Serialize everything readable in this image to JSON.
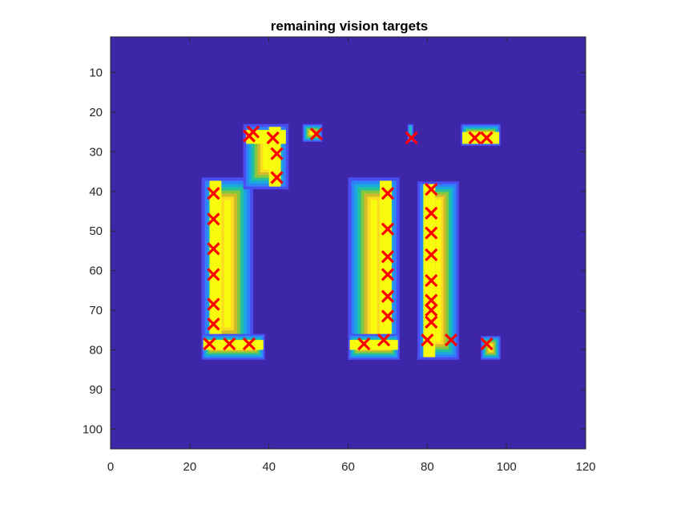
{
  "chart_data": {
    "type": "heatmap",
    "title": "remaining vision targets",
    "xlabel": "",
    "ylabel": "",
    "xlim": [
      0,
      120
    ],
    "ylim": [
      105,
      1
    ],
    "x_ticks": [
      0,
      20,
      40,
      60,
      80,
      100,
      120
    ],
    "y_ticks": [
      10,
      20,
      30,
      40,
      50,
      60,
      70,
      80,
      90,
      100
    ],
    "y_reversed": true,
    "grid": false,
    "background_value_color": "#3e26a8",
    "colormap": "parula",
    "colormap_colors": [
      "#3e26a8",
      "#4a4ef0",
      "#2f82f8",
      "#1aa9dd",
      "#26c19c",
      "#7fc941",
      "#d1bb2b",
      "#fadc21",
      "#f9fb0e"
    ],
    "regions": [
      {
        "name": "left-vertical-bar",
        "x": [
          23,
          36
        ],
        "y": [
          36.5,
          80
        ],
        "core_x": [
          25,
          28
        ]
      },
      {
        "name": "left-bottom-arm",
        "x": [
          23,
          39
        ],
        "y": [
          76,
          82.5
        ],
        "core_y": [
          77.5,
          80
        ]
      },
      {
        "name": "top-left-block",
        "x": [
          33.5,
          45
        ],
        "y": [
          23,
          39.5
        ],
        "core_x": [
          40,
          43
        ],
        "core_y": [
          24.5,
          28
        ]
      },
      {
        "name": "small-square",
        "x": [
          48.5,
          53.5
        ],
        "y": [
          23,
          27.5
        ]
      },
      {
        "name": "middle-vertical-bar",
        "x": [
          60,
          73
        ],
        "y": [
          36.5,
          82.5
        ],
        "core_x": [
          68,
          71
        ]
      },
      {
        "name": "middle-bottom-arm",
        "x": [
          60,
          73
        ],
        "y": [
          76,
          82.5
        ],
        "core_y": [
          77.5,
          80
        ]
      },
      {
        "name": "right-vertical-bar",
        "x": [
          77.5,
          88
        ],
        "y": [
          37.5,
          82.5
        ],
        "core_x": [
          79,
          82
        ]
      },
      {
        "name": "tiny-strip",
        "x": [
          75,
          76.5
        ],
        "y": [
          23,
          27.5
        ]
      },
      {
        "name": "top-right-block",
        "x": [
          88.5,
          98.5
        ],
        "y": [
          23,
          28.5
        ],
        "core_y": [
          25,
          28
        ]
      },
      {
        "name": "bottom-right-block",
        "x": [
          93.5,
          98.5
        ],
        "y": [
          76.5,
          82.5
        ]
      }
    ],
    "markers": {
      "name": "targets",
      "symbol": "x",
      "color": "#ff0000",
      "points": [
        [
          35,
          26
        ],
        [
          36,
          25
        ],
        [
          41,
          26.5
        ],
        [
          42,
          30.5
        ],
        [
          42,
          36.5
        ],
        [
          52,
          25.5
        ],
        [
          76,
          26.5
        ],
        [
          92,
          26.5
        ],
        [
          95,
          26.5
        ],
        [
          26,
          40.5
        ],
        [
          26,
          47
        ],
        [
          26,
          54.5
        ],
        [
          26,
          61
        ],
        [
          26,
          68.5
        ],
        [
          26,
          73.5
        ],
        [
          25,
          78.5
        ],
        [
          30,
          78.5
        ],
        [
          35,
          78.5
        ],
        [
          70,
          40.5
        ],
        [
          70,
          49.5
        ],
        [
          70,
          56.5
        ],
        [
          70,
          61
        ],
        [
          70,
          66.5
        ],
        [
          70,
          71.5
        ],
        [
          64,
          78.5
        ],
        [
          69,
          77.5
        ],
        [
          81,
          39.5
        ],
        [
          81,
          45.5
        ],
        [
          81,
          50.5
        ],
        [
          81,
          56
        ],
        [
          81,
          62.5
        ],
        [
          81,
          67.5
        ],
        [
          81,
          70
        ],
        [
          81,
          73
        ],
        [
          80,
          77.5
        ],
        [
          86,
          77.5
        ],
        [
          95,
          78.5
        ]
      ]
    }
  }
}
